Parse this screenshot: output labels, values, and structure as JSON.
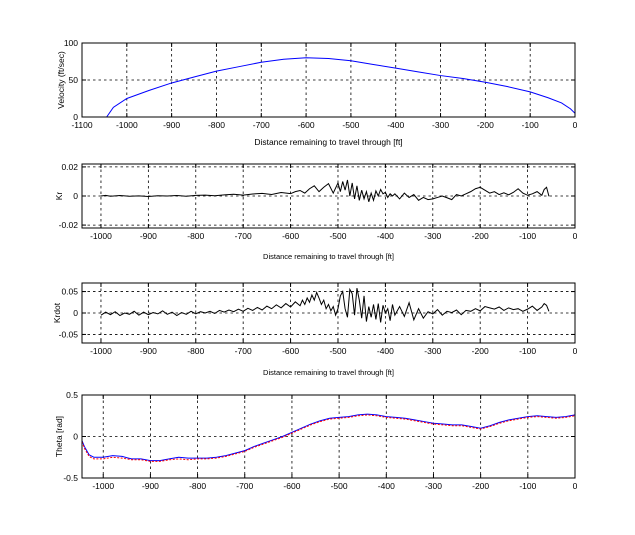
{
  "chart_data": [
    {
      "type": "line",
      "ylabel": "Velocity (ft/sec)",
      "xlabel": "Distance remaining to travel through [ft]",
      "xlim": [
        -1100,
        0
      ],
      "ylim": [
        0,
        100
      ],
      "xticks": [
        -1100,
        -1000,
        -900,
        -800,
        -700,
        -600,
        -500,
        -400,
        -300,
        -200,
        -100,
        0
      ],
      "xtick_labels": [
        "-1100",
        "-1000",
        "-900",
        "-800",
        "-700",
        "-600",
        "-500",
        "-400",
        "-300",
        "-200",
        "-100",
        "0"
      ],
      "yticks": [
        0,
        50,
        100
      ],
      "ytick_labels": [
        "0",
        "50",
        "100"
      ],
      "grid": true,
      "series": [
        {
          "color": "#0000ff",
          "x": [
            -1045,
            -1030,
            -1000,
            -950,
            -900,
            -850,
            -800,
            -750,
            -700,
            -650,
            -600,
            -550,
            -500,
            -450,
            -400,
            -350,
            -300,
            -250,
            -200,
            -150,
            -100,
            -60,
            -30,
            -10,
            0
          ],
          "y": [
            0,
            13,
            25,
            36,
            46,
            54,
            62,
            68,
            74,
            78,
            80,
            79,
            76,
            71,
            66,
            61,
            56,
            52,
            47,
            41,
            34,
            26,
            19,
            11,
            5
          ]
        }
      ]
    },
    {
      "type": "line",
      "ylabel": "Kr",
      "xlabel": "Distance remaining to travel through [ft]",
      "xlim": [
        -1040,
        0
      ],
      "ylim": [
        -0.022,
        0.022
      ],
      "xticks": [
        -1000,
        -900,
        -800,
        -700,
        -600,
        -500,
        -400,
        -300,
        -200,
        -100,
        0
      ],
      "xtick_labels": [
        "-1000",
        "-900",
        "-800",
        "-700",
        "-600",
        "-500",
        "-400",
        "-300",
        "-200",
        "-100",
        "0"
      ],
      "yticks": [
        -0.02,
        0,
        0.02
      ],
      "ytick_labels": [
        "-0.02",
        "0",
        "0.02"
      ],
      "grid": true,
      "series": [
        {
          "color": "#000000",
          "x": [
            -1000,
            -990,
            -980,
            -960,
            -940,
            -920,
            -900,
            -880,
            -860,
            -840,
            -820,
            -800,
            -780,
            -760,
            -740,
            -720,
            -700,
            -680,
            -660,
            -640,
            -620,
            -600,
            -590,
            -580,
            -570,
            -560,
            -550,
            -540,
            -530,
            -520,
            -510,
            -500,
            -495,
            -490,
            -485,
            -480,
            -475,
            -470,
            -465,
            -460,
            -455,
            -450,
            -445,
            -440,
            -435,
            -430,
            -425,
            -420,
            -415,
            -410,
            -405,
            -400,
            -395,
            -390,
            -385,
            -380,
            -370,
            -360,
            -350,
            -340,
            -330,
            -320,
            -310,
            -300,
            -290,
            -280,
            -270,
            -260,
            -250,
            -240,
            -230,
            -220,
            -210,
            -200,
            -190,
            -180,
            -170,
            -160,
            -150,
            -140,
            -130,
            -120,
            -110,
            -100,
            -90,
            -80,
            -70,
            -65,
            -60,
            -55
          ],
          "y": [
            0.0,
            0.0004,
            -0.0002,
            0.0003,
            -0.0002,
            0.0001,
            -0.0003,
            0.0002,
            0.0,
            0.0003,
            -0.0002,
            0.0004,
            0.0006,
            0.0002,
            0.0008,
            0.0012,
            0.0006,
            0.0014,
            0.0018,
            0.001,
            0.0024,
            0.0016,
            0.003,
            0.0038,
            0.002,
            0.005,
            0.007,
            0.003,
            0.006,
            0.0085,
            0.002,
            0.009,
            0.003,
            0.01,
            0.004,
            0.011,
            0.0,
            0.009,
            -0.002,
            0.007,
            -0.003,
            0.004,
            -0.002,
            0.003,
            -0.004,
            0.002,
            -0.003,
            0.0035,
            0.0,
            0.0045,
            0.0015,
            0.0025,
            -0.001,
            0.0015,
            0.0,
            0.0015,
            -0.002,
            0.002,
            -0.001,
            0.001,
            -0.003,
            -0.001,
            -0.0025,
            -0.002,
            -0.001,
            0.0,
            -0.0012,
            -0.0025,
            0.001,
            0.0,
            0.0015,
            0.003,
            0.005,
            0.006,
            0.004,
            0.002,
            0.003,
            0.001,
            0.0022,
            0.0008,
            0.0025,
            0.005,
            0.002,
            0.0005,
            0.0015,
            0.003,
            0.0005,
            0.0045,
            0.006,
            -0.0002
          ]
        }
      ]
    },
    {
      "type": "line",
      "ylabel": "Krdot",
      "xlabel": "Distance remaining to travel through [ft]",
      "xlim": [
        -1040,
        0
      ],
      "ylim": [
        -0.07,
        0.07
      ],
      "xticks": [
        -1000,
        -900,
        -800,
        -700,
        -600,
        -500,
        -400,
        -300,
        -200,
        -100,
        0
      ],
      "xtick_labels": [
        "-1000",
        "-900",
        "-800",
        "-700",
        "-600",
        "-500",
        "-400",
        "-300",
        "-200",
        "-100",
        "0"
      ],
      "yticks": [
        -0.05,
        0,
        0.05
      ],
      "ytick_labels": [
        "-0.05",
        "0",
        "0.05"
      ],
      "grid": true,
      "series": [
        {
          "color": "#000000",
          "x": [
            -1000,
            -990,
            -980,
            -970,
            -960,
            -950,
            -940,
            -930,
            -920,
            -910,
            -900,
            -890,
            -880,
            -870,
            -860,
            -850,
            -840,
            -830,
            -820,
            -810,
            -800,
            -790,
            -780,
            -770,
            -760,
            -750,
            -740,
            -730,
            -720,
            -710,
            -700,
            -690,
            -680,
            -670,
            -660,
            -650,
            -640,
            -630,
            -620,
            -610,
            -600,
            -590,
            -580,
            -575,
            -570,
            -565,
            -560,
            -555,
            -550,
            -545,
            -540,
            -535,
            -530,
            -525,
            -520,
            -515,
            -510,
            -505,
            -500,
            -495,
            -490,
            -485,
            -480,
            -475,
            -470,
            -465,
            -460,
            -455,
            -450,
            -445,
            -440,
            -435,
            -430,
            -425,
            -420,
            -415,
            -410,
            -405,
            -400,
            -395,
            -390,
            -385,
            -380,
            -370,
            -360,
            -350,
            -340,
            -330,
            -320,
            -310,
            -300,
            -290,
            -280,
            -270,
            -260,
            -250,
            -240,
            -230,
            -220,
            -210,
            -200,
            -190,
            -180,
            -170,
            -160,
            -150,
            -140,
            -130,
            -120,
            -110,
            -100,
            -90,
            -80,
            -70,
            -65,
            -60,
            -55
          ],
          "y": [
            -0.005,
            0.002,
            -0.004,
            0.003,
            -0.006,
            0.0,
            -0.003,
            0.004,
            -0.005,
            0.002,
            -0.004,
            0.001,
            -0.002,
            0.005,
            -0.003,
            0.002,
            -0.006,
            0.001,
            -0.003,
            0.004,
            -0.002,
            0.003,
            0.0,
            0.004,
            -0.001,
            0.006,
            0.002,
            0.007,
            0.003,
            0.009,
            0.004,
            0.011,
            0.006,
            0.013,
            0.007,
            0.016,
            0.01,
            0.019,
            0.012,
            0.022,
            0.014,
            0.026,
            0.017,
            0.03,
            0.02,
            0.035,
            0.025,
            0.042,
            0.03,
            0.048,
            0.035,
            0.02,
            0.03,
            0.01,
            0.02,
            0.005,
            0.015,
            -0.005,
            0.01,
            0.04,
            0.05,
            0.01,
            -0.01,
            0.055,
            0.045,
            -0.005,
            0.058,
            0.03,
            -0.012,
            0.04,
            -0.02,
            0.015,
            -0.01,
            0.02,
            -0.015,
            0.022,
            -0.022,
            0.018,
            0.0,
            0.01,
            -0.018,
            0.02,
            -0.005,
            0.015,
            -0.008,
            0.024,
            -0.016,
            0.01,
            -0.012,
            0.003,
            -0.002,
            0.008,
            -0.005,
            0.004,
            0.001,
            0.007,
            -0.004,
            0.006,
            0.004,
            0.01,
            0.005,
            0.015,
            0.012,
            0.009,
            0.014,
            0.006,
            0.012,
            0.008,
            0.01,
            0.004,
            0.009,
            0.016,
            0.006,
            0.014,
            0.022,
            0.018,
            0.004
          ]
        }
      ]
    },
    {
      "type": "line",
      "ylabel": "Theta [rad]",
      "xlim": [
        -1045,
        0
      ],
      "ylim": [
        -0.5,
        0.5
      ],
      "xticks": [
        -1000,
        -900,
        -800,
        -700,
        -600,
        -500,
        -400,
        -300,
        -200,
        -100,
        0
      ],
      "xtick_labels": [
        "-1000",
        "-900",
        "-800",
        "-700",
        "-600",
        "-500",
        "-400",
        "-300",
        "-200",
        "-100",
        "0"
      ],
      "yticks": [
        -0.5,
        0,
        0.5
      ],
      "ytick_labels": [
        "-0.5",
        "0",
        "0.5"
      ],
      "grid": true,
      "series": [
        {
          "color": "#0000ff",
          "x": [
            -1045,
            -1040,
            -1030,
            -1020,
            -1000,
            -980,
            -960,
            -940,
            -920,
            -900,
            -880,
            -860,
            -840,
            -820,
            -800,
            -780,
            -760,
            -740,
            -720,
            -700,
            -680,
            -660,
            -640,
            -620,
            -600,
            -580,
            -560,
            -540,
            -520,
            -500,
            -480,
            -460,
            -440,
            -420,
            -400,
            -380,
            -360,
            -340,
            -320,
            -300,
            -280,
            -260,
            -240,
            -220,
            -200,
            -180,
            -160,
            -140,
            -120,
            -100,
            -80,
            -60,
            -40,
            -20,
            0
          ],
          "y": [
            -0.05,
            -0.12,
            -0.22,
            -0.25,
            -0.25,
            -0.23,
            -0.24,
            -0.27,
            -0.27,
            -0.29,
            -0.29,
            -0.27,
            -0.25,
            -0.26,
            -0.26,
            -0.26,
            -0.25,
            -0.23,
            -0.2,
            -0.17,
            -0.12,
            -0.08,
            -0.04,
            0.0,
            0.05,
            0.1,
            0.15,
            0.19,
            0.22,
            0.23,
            0.24,
            0.26,
            0.27,
            0.26,
            0.24,
            0.23,
            0.22,
            0.2,
            0.18,
            0.16,
            0.15,
            0.14,
            0.14,
            0.12,
            0.1,
            0.13,
            0.17,
            0.2,
            0.22,
            0.24,
            0.25,
            0.24,
            0.23,
            0.24,
            0.26
          ]
        },
        {
          "color": "#ff0000",
          "x": [
            -1045,
            -1040,
            -1030,
            -1020,
            -1000,
            -980,
            -960,
            -940,
            -920,
            -900,
            -880,
            -860,
            -840,
            -820,
            -800,
            -780,
            -760,
            -740,
            -720,
            -700,
            -680,
            -660,
            -640,
            -620,
            -600,
            -580,
            -560,
            -540,
            -520,
            -500,
            -480,
            -460,
            -440,
            -420,
            -400,
            -380,
            -360,
            -340,
            -320,
            -300,
            -280,
            -260,
            -240,
            -220,
            -200,
            -180,
            -160,
            -140,
            -120,
            -100,
            -80,
            -60,
            -40,
            -20,
            0
          ],
          "y": [
            -0.06,
            -0.14,
            -0.24,
            -0.27,
            -0.27,
            -0.25,
            -0.26,
            -0.28,
            -0.28,
            -0.3,
            -0.3,
            -0.28,
            -0.27,
            -0.28,
            -0.27,
            -0.27,
            -0.26,
            -0.24,
            -0.21,
            -0.18,
            -0.13,
            -0.09,
            -0.05,
            -0.01,
            0.04,
            0.09,
            0.14,
            0.18,
            0.21,
            0.22,
            0.23,
            0.25,
            0.26,
            0.25,
            0.23,
            0.22,
            0.21,
            0.19,
            0.17,
            0.15,
            0.14,
            0.13,
            0.13,
            0.11,
            0.09,
            0.12,
            0.16,
            0.19,
            0.21,
            0.23,
            0.24,
            0.23,
            0.22,
            0.23,
            0.25
          ]
        }
      ]
    }
  ]
}
